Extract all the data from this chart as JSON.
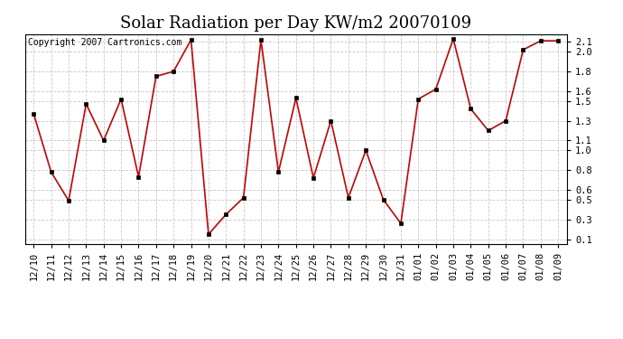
{
  "title": "Solar Radiation per Day KW/m2 20070109",
  "copyright_text": "Copyright 2007 Cartronics.com",
  "labels": [
    "12/10",
    "12/11",
    "12/12",
    "12/13",
    "12/14",
    "12/15",
    "12/16",
    "12/17",
    "12/18",
    "12/19",
    "12/20",
    "12/21",
    "12/22",
    "12/23",
    "12/24",
    "12/25",
    "12/26",
    "12/27",
    "12/28",
    "12/29",
    "12/30",
    "12/31",
    "01/01",
    "01/02",
    "01/03",
    "01/04",
    "01/05",
    "01/06",
    "01/07",
    "01/08",
    "01/09"
  ],
  "values": [
    1.37,
    0.78,
    0.49,
    1.47,
    1.1,
    1.52,
    0.73,
    1.75,
    1.8,
    2.12,
    0.15,
    0.35,
    0.52,
    2.12,
    0.78,
    1.53,
    0.72,
    1.3,
    0.52,
    1.0,
    0.5,
    0.26,
    1.52,
    1.62,
    2.13,
    1.42,
    1.2,
    1.3,
    2.02,
    2.11,
    2.11
  ],
  "line_color": "#cc0000",
  "marker_color": "#000000",
  "bg_color": "#ffffff",
  "grid_color": "#bbbbbb",
  "title_fontsize": 13,
  "ylim": [
    0.05,
    2.18
  ],
  "yticks": [
    0.1,
    0.3,
    0.5,
    0.6,
    0.8,
    1.0,
    1.1,
    1.3,
    1.5,
    1.6,
    1.8,
    2.0,
    2.1
  ],
  "copyright_fontsize": 7,
  "tick_fontsize": 7.5,
  "title_font": "DejaVu Serif"
}
